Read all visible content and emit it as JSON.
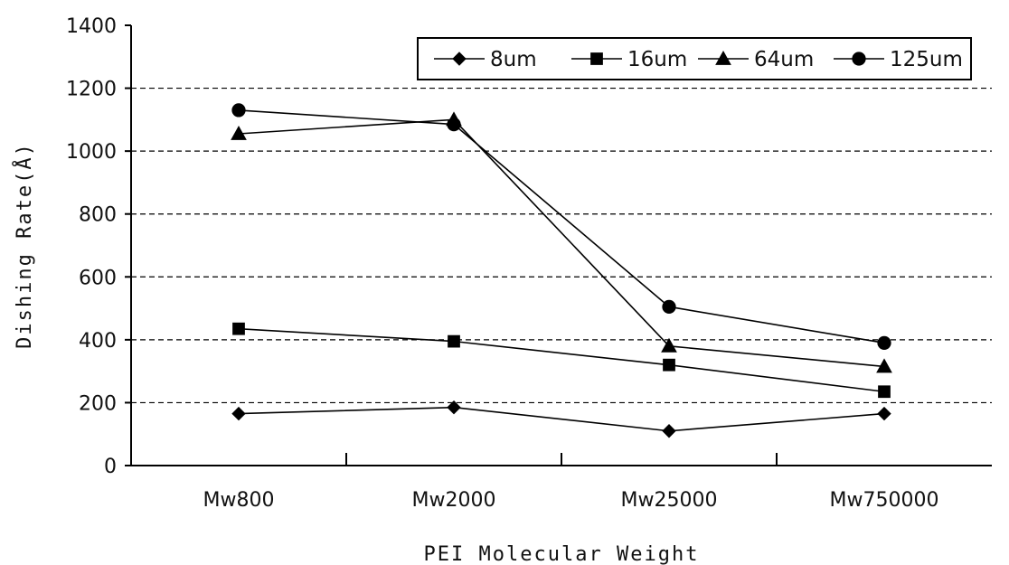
{
  "chart_data": {
    "type": "line",
    "title": "",
    "xlabel": "PEI Molecular Weight",
    "ylabel": "Dishing Rate(Å)",
    "categories": [
      "Mw800",
      "Mw2000",
      "Mw25000",
      "Mw750000"
    ],
    "ylim": [
      0,
      1400
    ],
    "yticks": [
      0,
      200,
      400,
      600,
      800,
      1000,
      1200,
      1400
    ],
    "grid": "horizontal-dashed",
    "legend_position": "top-right",
    "series": [
      {
        "name": "8um",
        "marker": "diamond",
        "values": [
          165,
          185,
          110,
          165
        ]
      },
      {
        "name": "16um",
        "marker": "square",
        "values": [
          435,
          395,
          320,
          235
        ]
      },
      {
        "name": "64um",
        "marker": "triangle",
        "values": [
          1055,
          1100,
          380,
          315
        ]
      },
      {
        "name": "125um",
        "marker": "circle",
        "values": [
          1130,
          1085,
          505,
          390
        ]
      }
    ],
    "colors": {
      "line": "#000000",
      "grid": "#000000",
      "background": "#ffffff"
    }
  }
}
